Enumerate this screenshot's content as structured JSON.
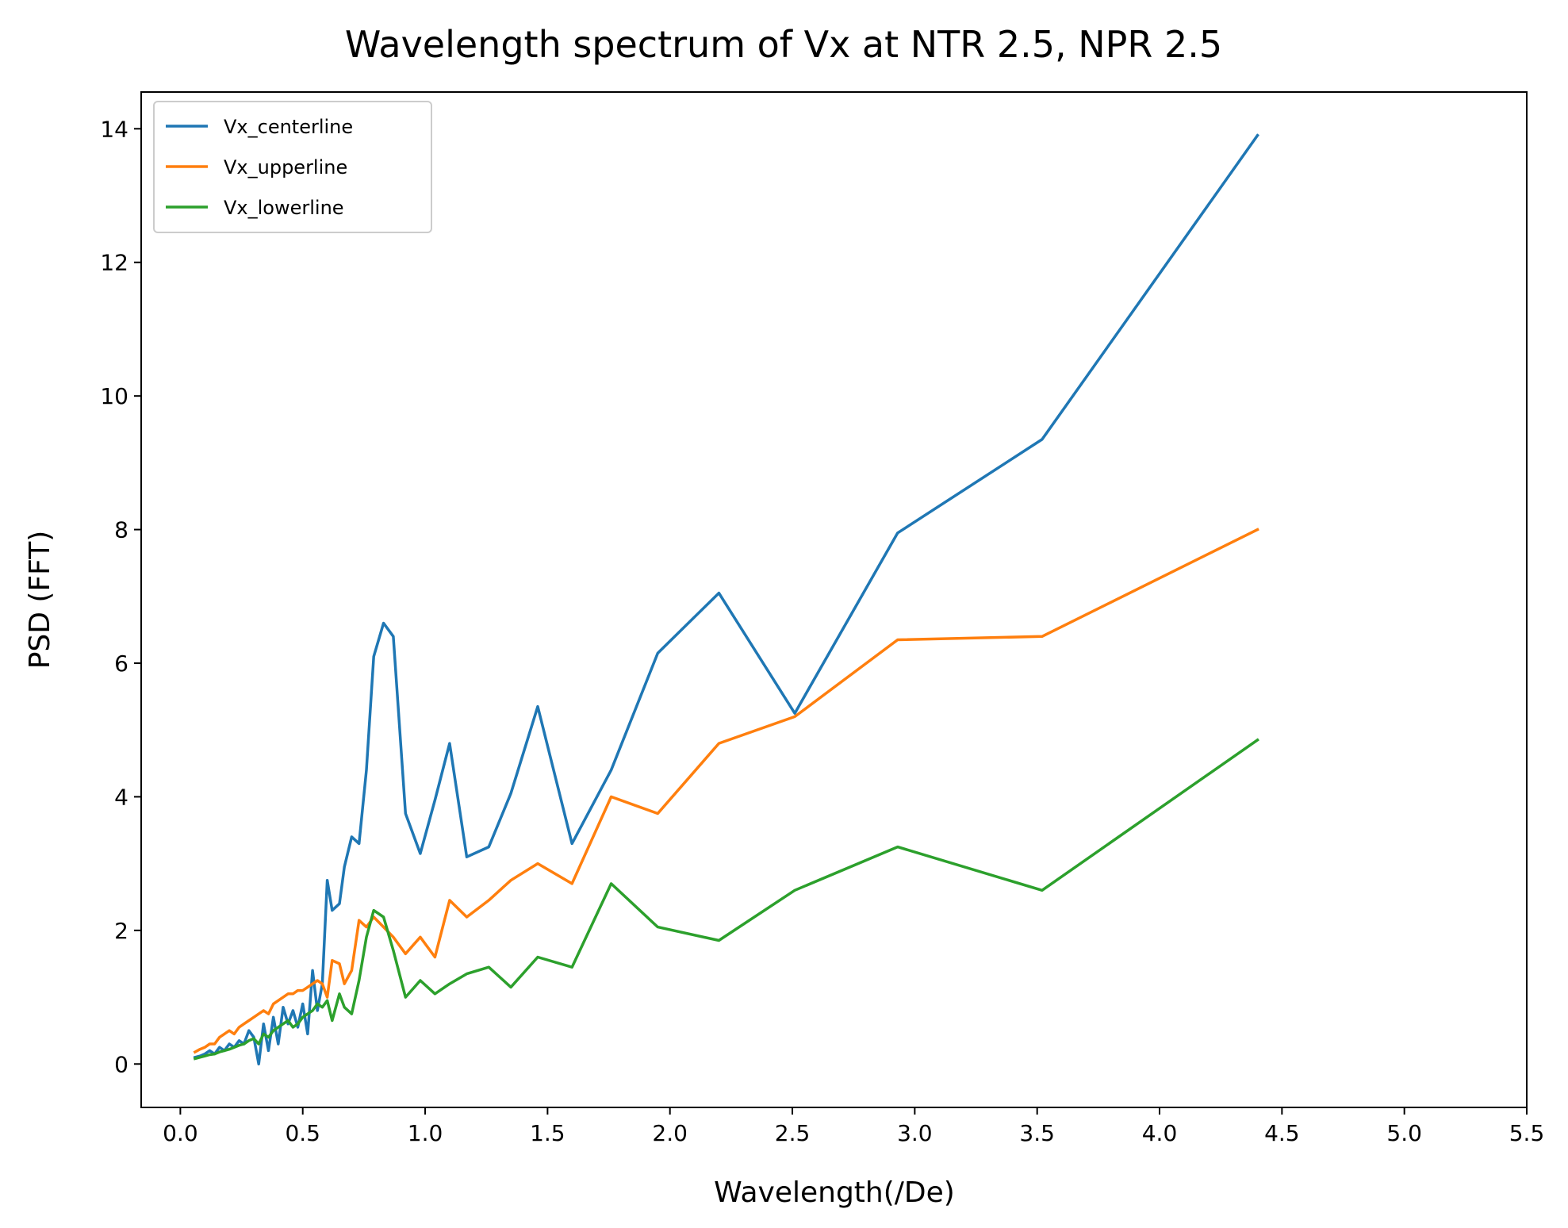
{
  "chart_data": {
    "type": "line",
    "title": "Wavelength spectrum of Vx at NTR 2.5, NPR 2.5",
    "xlabel": "Wavelength(/De)",
    "ylabel": "PSD (FFT)",
    "xlim": [
      -0.16,
      5.5
    ],
    "ylim": [
      -0.65,
      14.55
    ],
    "xticks": [
      "0.0",
      "0.5",
      "1.0",
      "1.5",
      "2.0",
      "2.5",
      "3.0",
      "3.5",
      "4.0",
      "4.5",
      "5.0",
      "5.5"
    ],
    "yticks": [
      "0",
      "2",
      "4",
      "6",
      "8",
      "10",
      "12",
      "14"
    ],
    "grid": false,
    "legend_position": "top-left",
    "series": [
      {
        "name": "Vx_centerline",
        "color": "#1f77b4",
        "x": [
          0.06,
          0.08,
          0.1,
          0.12,
          0.14,
          0.16,
          0.18,
          0.2,
          0.22,
          0.24,
          0.26,
          0.28,
          0.3,
          0.32,
          0.34,
          0.36,
          0.38,
          0.4,
          0.42,
          0.44,
          0.46,
          0.48,
          0.5,
          0.52,
          0.54,
          0.56,
          0.58,
          0.6,
          0.62,
          0.65,
          0.67,
          0.7,
          0.73,
          0.76,
          0.79,
          0.83,
          0.87,
          0.92,
          0.98,
          1.04,
          1.1,
          1.17,
          1.26,
          1.35,
          1.46,
          1.6,
          1.76,
          1.95,
          2.2,
          2.51,
          2.93,
          3.52,
          4.4
        ],
        "y": [
          0.1,
          0.12,
          0.15,
          0.2,
          0.15,
          0.25,
          0.2,
          0.3,
          0.25,
          0.35,
          0.3,
          0.5,
          0.4,
          0.0,
          0.6,
          0.2,
          0.7,
          0.3,
          0.85,
          0.6,
          0.8,
          0.55,
          0.9,
          0.45,
          1.4,
          0.8,
          1.2,
          2.75,
          2.3,
          2.4,
          2.95,
          3.4,
          3.3,
          4.4,
          6.1,
          6.6,
          6.4,
          3.75,
          3.15,
          3.95,
          4.8,
          3.1,
          3.25,
          4.05,
          5.35,
          3.3,
          4.4,
          6.15,
          7.05,
          5.25,
          7.95,
          9.35,
          13.9
        ]
      },
      {
        "name": "Vx_upperline",
        "color": "#ff7f0e",
        "x": [
          0.06,
          0.08,
          0.1,
          0.12,
          0.14,
          0.16,
          0.18,
          0.2,
          0.22,
          0.24,
          0.26,
          0.28,
          0.3,
          0.32,
          0.34,
          0.36,
          0.38,
          0.4,
          0.42,
          0.44,
          0.46,
          0.48,
          0.5,
          0.52,
          0.54,
          0.56,
          0.58,
          0.6,
          0.62,
          0.65,
          0.67,
          0.7,
          0.73,
          0.76,
          0.79,
          0.83,
          0.87,
          0.92,
          0.98,
          1.04,
          1.1,
          1.17,
          1.26,
          1.35,
          1.46,
          1.6,
          1.76,
          1.95,
          2.2,
          2.51,
          2.93,
          3.52,
          4.4
        ],
        "y": [
          0.18,
          0.22,
          0.25,
          0.3,
          0.3,
          0.4,
          0.45,
          0.5,
          0.45,
          0.55,
          0.6,
          0.65,
          0.7,
          0.75,
          0.8,
          0.75,
          0.9,
          0.95,
          1.0,
          1.05,
          1.05,
          1.1,
          1.1,
          1.15,
          1.2,
          1.25,
          1.2,
          1.0,
          1.55,
          1.5,
          1.2,
          1.4,
          2.15,
          2.05,
          2.2,
          2.05,
          1.9,
          1.65,
          1.9,
          1.6,
          2.45,
          2.2,
          2.45,
          2.75,
          3.0,
          2.7,
          4.0,
          3.75,
          4.8,
          5.2,
          6.35,
          6.4,
          8.0
        ]
      },
      {
        "name": "Vx_lowerline",
        "color": "#2ca02c",
        "x": [
          0.06,
          0.08,
          0.1,
          0.12,
          0.14,
          0.16,
          0.18,
          0.2,
          0.22,
          0.24,
          0.26,
          0.28,
          0.3,
          0.32,
          0.34,
          0.36,
          0.38,
          0.4,
          0.42,
          0.44,
          0.46,
          0.48,
          0.5,
          0.52,
          0.54,
          0.56,
          0.58,
          0.6,
          0.62,
          0.65,
          0.67,
          0.7,
          0.73,
          0.76,
          0.79,
          0.83,
          0.87,
          0.92,
          0.98,
          1.04,
          1.1,
          1.17,
          1.26,
          1.35,
          1.46,
          1.6,
          1.76,
          1.95,
          2.2,
          2.51,
          2.93,
          3.52,
          4.4
        ],
        "y": [
          0.08,
          0.1,
          0.12,
          0.14,
          0.15,
          0.18,
          0.2,
          0.22,
          0.25,
          0.28,
          0.3,
          0.35,
          0.38,
          0.3,
          0.45,
          0.4,
          0.5,
          0.55,
          0.6,
          0.65,
          0.55,
          0.6,
          0.7,
          0.75,
          0.8,
          0.9,
          0.85,
          0.95,
          0.65,
          1.05,
          0.85,
          0.75,
          1.25,
          1.9,
          2.3,
          2.2,
          1.7,
          1.0,
          1.25,
          1.05,
          1.2,
          1.35,
          1.45,
          1.15,
          1.6,
          1.45,
          2.7,
          2.05,
          1.85,
          2.6,
          3.25,
          2.6,
          4.85
        ]
      }
    ]
  }
}
